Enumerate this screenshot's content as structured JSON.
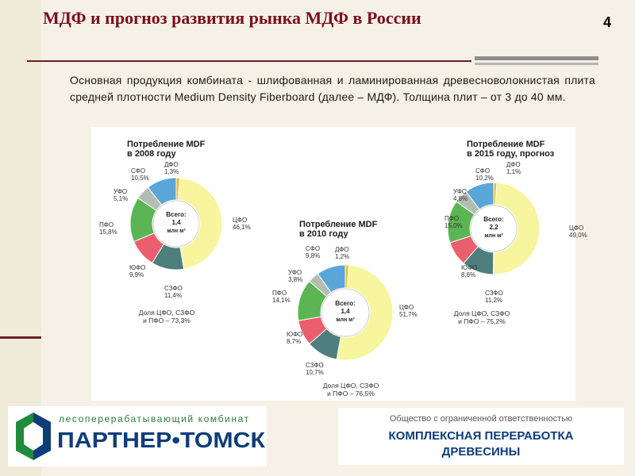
{
  "slide": {
    "title": "МДФ и прогноз развития рынка МДФ в России",
    "page_number": "4",
    "intro": "Основная продукция комбината - шлифованная и ламинированная древесноволокнистая плита средней плотности Medium Density Fiberboard (далее – МДФ). Толщина плит – от 3 до 40 мм."
  },
  "footer": {
    "logo_line1": "лесоперерабатывающий комбинат",
    "logo_line2": "ПАРТНЕР•ТОМСК",
    "company_sub": "Общество с ограниченной ответственностью",
    "company_main_1": "КОМПЛЕКСНАЯ ПЕРЕРАБОТКА",
    "company_main_2": "ДРЕВЕСИНЫ"
  },
  "colors": {
    "ЦФО": "#f7f59e",
    "СЗФО": "#4f7f7d",
    "ЮФО": "#ea5f6e",
    "ПФО": "#5ab552",
    "УФО": "#b3bdb1",
    "СФО": "#5aa6d8",
    "ДФО": "#e8c12e"
  },
  "chart_data": [
    {
      "type": "pie",
      "title": "Потребление MDF в 2008 году",
      "center_label": [
        "Всего:",
        "1,4",
        "млн м³"
      ],
      "slices": [
        {
          "name": "ДФО",
          "value": 1.3,
          "label": "1,3%"
        },
        {
          "name": "ЦФО",
          "value": 46.1,
          "label": "46,1%"
        },
        {
          "name": "СЗФО",
          "value": 11.4,
          "label": "11,4%"
        },
        {
          "name": "ЮФО",
          "value": 9.9,
          "label": "9,9%"
        },
        {
          "name": "ПФО",
          "value": 15.8,
          "label": "15,8%"
        },
        {
          "name": "УФО",
          "value": 5.1,
          "label": "5,1%"
        },
        {
          "name": "СФО",
          "value": 10.5,
          "label": "10,5%"
        }
      ],
      "note": [
        "Доля ЦФО, СЗФО",
        "и ПФО – 73,3%"
      ]
    },
    {
      "type": "pie",
      "title": "Потребление MDF в 2010 году",
      "center_label": [
        "Всего:",
        "1,4",
        "млн м³"
      ],
      "slices": [
        {
          "name": "ДФО",
          "value": 1.2,
          "label": "1,2%"
        },
        {
          "name": "ЦФО",
          "value": 51.7,
          "label": "51,7%"
        },
        {
          "name": "СЗФО",
          "value": 10.7,
          "label": "10,7%"
        },
        {
          "name": "ЮФО",
          "value": 8.7,
          "label": "8,7%"
        },
        {
          "name": "ПФО",
          "value": 14.1,
          "label": "14,1%"
        },
        {
          "name": "УФО",
          "value": 3.8,
          "label": "3,8%"
        },
        {
          "name": "СФО",
          "value": 9.8,
          "label": "9,8%"
        }
      ],
      "note": [
        "Доля ЦФО, СЗФО",
        "и ПФО – 76,5%"
      ]
    },
    {
      "type": "pie",
      "title": "Потребление MDF в 2015 году, прогноз",
      "center_label": [
        "Всего:",
        "2,2",
        "млн м³"
      ],
      "slices": [
        {
          "name": "ДФО",
          "value": 1.1,
          "label": "1,1%"
        },
        {
          "name": "ЦФО",
          "value": 49.0,
          "label": "49,0%"
        },
        {
          "name": "СЗФО",
          "value": 11.2,
          "label": "11,2%"
        },
        {
          "name": "ЮФО",
          "value": 8.6,
          "label": "8,6%"
        },
        {
          "name": "ПФО",
          "value": 15.0,
          "label": "15,0%"
        },
        {
          "name": "УФО",
          "value": 4.8,
          "label": "4,8%"
        },
        {
          "name": "СФО",
          "value": 10.2,
          "label": "10,2%"
        }
      ],
      "note": [
        "Доля ЦФО, СЗФО",
        "и ПФО – 75,2%"
      ]
    }
  ]
}
